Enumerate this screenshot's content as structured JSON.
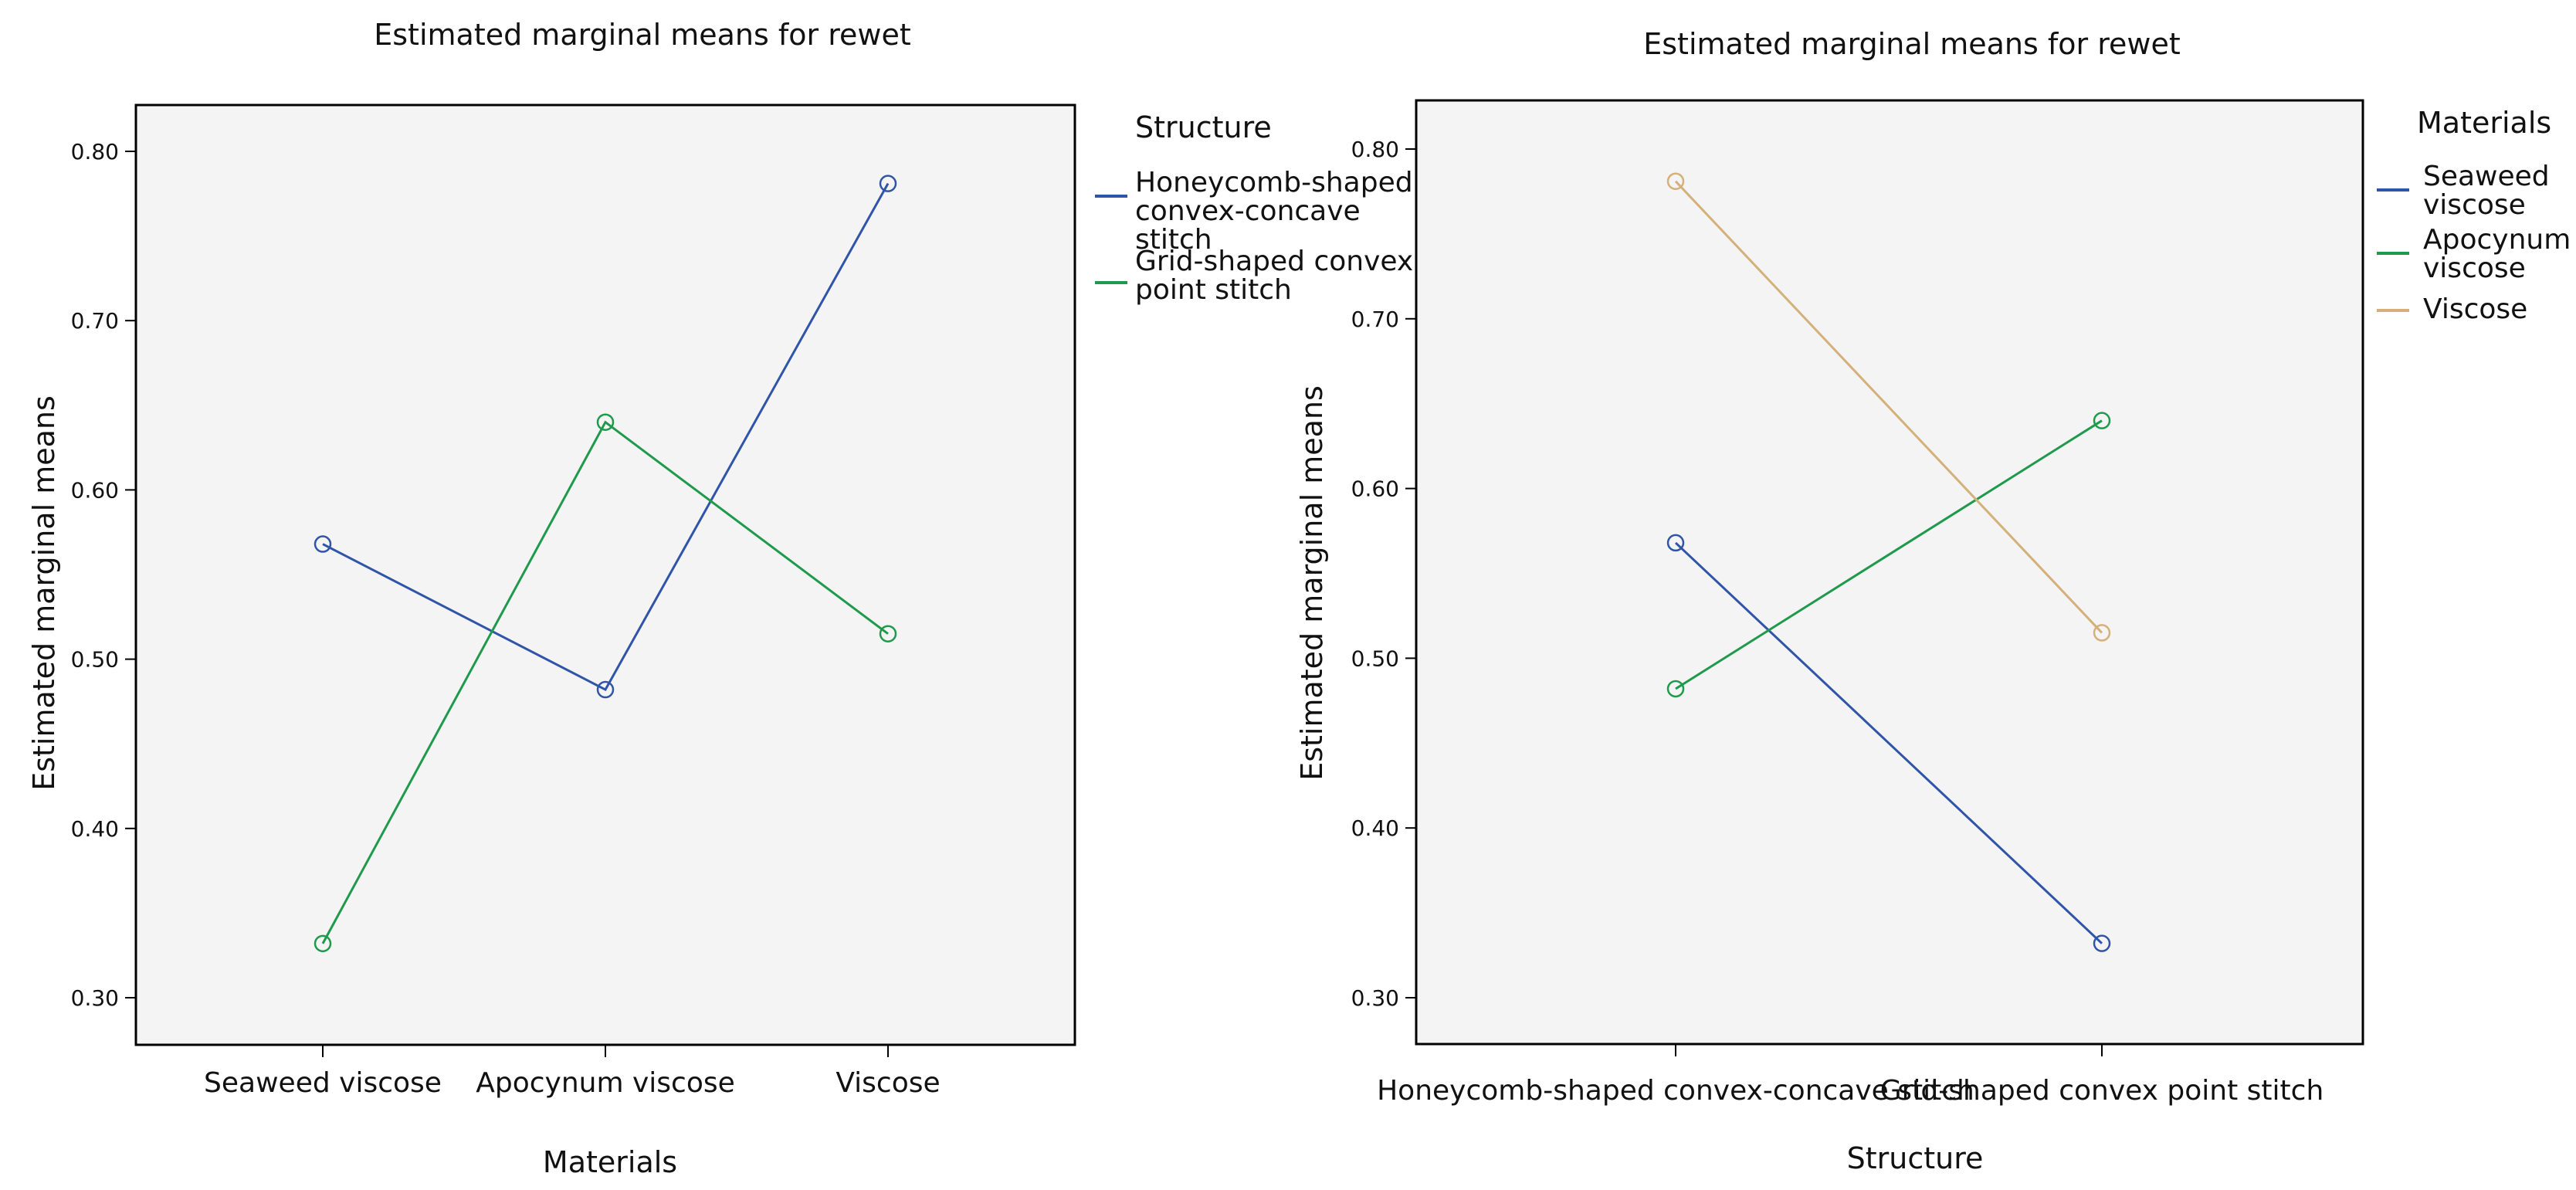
{
  "chart_data": [
    {
      "type": "line",
      "title": "Estimated marginal means for rewet",
      "xlabel": "Materials",
      "ylabel": "Estimated marginal means",
      "categories": [
        "Seaweed viscose",
        "Apocynum viscose",
        "Viscose"
      ],
      "ylim": [
        0.27,
        0.83
      ],
      "yticks": [
        "0.30",
        "0.40",
        "0.50",
        "0.60",
        "0.70",
        "0.80"
      ],
      "ytick_values": [
        0.3,
        0.4,
        0.5,
        0.6,
        0.7,
        0.8
      ],
      "grid": false,
      "legend": {
        "title": "Structure",
        "position": "right",
        "entries": [
          [
            "Honeycomb-shaped",
            "convex-concave",
            "stitch"
          ],
          [
            "Grid-shaped convex",
            " point stitch"
          ]
        ]
      },
      "series": [
        {
          "name": "Honeycomb-shaped convex-concave stitch",
          "color": "#2f54a8",
          "values": [
            0.568,
            0.482,
            0.781
          ]
        },
        {
          "name": "Grid-shaped convex point stitch",
          "color": "#1f9a4c",
          "values": [
            0.332,
            0.64,
            0.515
          ]
        }
      ]
    },
    {
      "type": "line",
      "title": "Estimated marginal means for rewet",
      "xlabel": "Structure",
      "ylabel": "Estimated marginal means",
      "categories": [
        "Honeycomb-shaped convex-concave stitch",
        "Grid-shaped convex point stitch"
      ],
      "ylim": [
        0.27,
        0.83
      ],
      "yticks": [
        "0.30",
        "0.40",
        "0.50",
        "0.60",
        "0.70",
        "0.80"
      ],
      "ytick_values": [
        0.3,
        0.4,
        0.5,
        0.6,
        0.7,
        0.8
      ],
      "grid": false,
      "legend": {
        "title": "Materials",
        "position": "right",
        "entries": [
          [
            "Seaweed",
            "viscose"
          ],
          [
            "Apocynum",
            "viscose"
          ],
          [
            "Viscose"
          ]
        ]
      },
      "series": [
        {
          "name": "Seaweed viscose",
          "color": "#2f54a8",
          "values": [
            0.568,
            0.332
          ]
        },
        {
          "name": "Apocynum viscose",
          "color": "#1f9a4c",
          "values": [
            0.482,
            0.64
          ]
        },
        {
          "name": "Viscose",
          "color": "#d4b07a",
          "values": [
            0.781,
            0.515
          ]
        }
      ]
    }
  ]
}
